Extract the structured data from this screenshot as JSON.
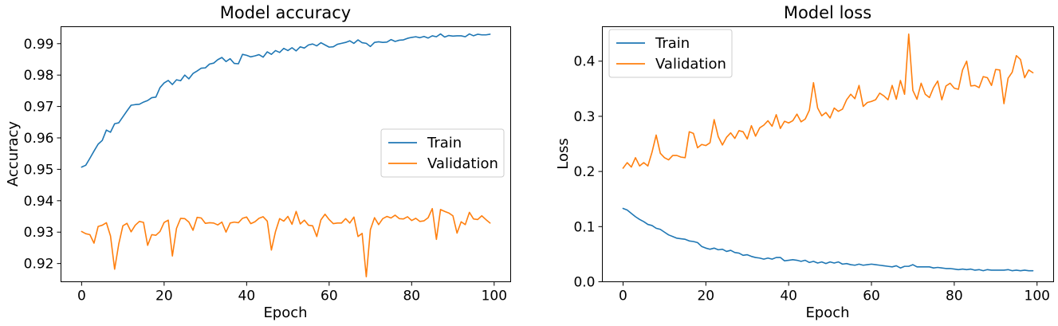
{
  "chart_data": [
    {
      "type": "line",
      "title": "Model accuracy",
      "xlabel": "Epoch",
      "ylabel": "Accuracy",
      "xlim": [
        -5,
        104
      ],
      "ylim": [
        0.9142,
        0.9954
      ],
      "xticks": [
        0,
        20,
        40,
        60,
        80,
        100
      ],
      "yticks": [
        0.92,
        0.93,
        0.94,
        0.95,
        0.96,
        0.97,
        0.98,
        0.99
      ],
      "ytick_labels": [
        "0.92",
        "0.93",
        "0.94",
        "0.95",
        "0.96",
        "0.97",
        "0.98",
        "0.99"
      ],
      "grid": false,
      "legend_position": "center-right",
      "series": [
        {
          "name": "Train",
          "color": "#1f77b4",
          "x": [
            0,
            1,
            2,
            3,
            4,
            5,
            6,
            7,
            8,
            9,
            10,
            11,
            12,
            13,
            14,
            15,
            16,
            17,
            18,
            19,
            20,
            21,
            22,
            23,
            24,
            25,
            26,
            27,
            28,
            29,
            30,
            31,
            32,
            33,
            34,
            35,
            36,
            37,
            38,
            39,
            40,
            41,
            42,
            43,
            44,
            45,
            46,
            47,
            48,
            49,
            50,
            51,
            52,
            53,
            54,
            55,
            56,
            57,
            58,
            59,
            60,
            61,
            62,
            63,
            64,
            65,
            66,
            67,
            68,
            69,
            70,
            71,
            72,
            73,
            74,
            75,
            76,
            77,
            78,
            79,
            80,
            81,
            82,
            83,
            84,
            85,
            86,
            87,
            88,
            89,
            90,
            91,
            92,
            93,
            94,
            95,
            96,
            97,
            98,
            99
          ],
          "y": [
            0.9507,
            0.9513,
            0.9535,
            0.9558,
            0.958,
            0.9592,
            0.9625,
            0.9618,
            0.9645,
            0.9648,
            0.9667,
            0.9686,
            0.9704,
            0.9706,
            0.9707,
            0.9714,
            0.9719,
            0.9728,
            0.973,
            0.976,
            0.9775,
            0.9783,
            0.977,
            0.9785,
            0.9782,
            0.98,
            0.9788,
            0.9805,
            0.9813,
            0.9822,
            0.9823,
            0.9835,
            0.9838,
            0.9849,
            0.9856,
            0.9843,
            0.9852,
            0.9837,
            0.9836,
            0.9866,
            0.9863,
            0.9858,
            0.9861,
            0.9865,
            0.9857,
            0.9874,
            0.9866,
            0.9878,
            0.9872,
            0.9885,
            0.9878,
            0.9887,
            0.9877,
            0.989,
            0.9886,
            0.9896,
            0.9899,
            0.9893,
            0.9903,
            0.9896,
            0.9889,
            0.989,
            0.9898,
            0.9901,
            0.9904,
            0.9909,
            0.9901,
            0.9912,
            0.9903,
            0.9901,
            0.9891,
            0.9904,
            0.9906,
            0.9904,
            0.9905,
            0.9913,
            0.9907,
            0.9911,
            0.9912,
            0.9917,
            0.992,
            0.9922,
            0.9919,
            0.9923,
            0.9918,
            0.9925,
            0.9922,
            0.9931,
            0.9921,
            0.9926,
            0.9924,
            0.9925,
            0.9925,
            0.9922,
            0.9931,
            0.9925,
            0.993,
            0.9928,
            0.9928,
            0.993
          ]
        },
        {
          "name": "Validation",
          "color": "#ff7f0e",
          "x": [
            0,
            1,
            2,
            3,
            4,
            5,
            6,
            7,
            8,
            9,
            10,
            11,
            12,
            13,
            14,
            15,
            16,
            17,
            18,
            19,
            20,
            21,
            22,
            23,
            24,
            25,
            26,
            27,
            28,
            29,
            30,
            31,
            32,
            33,
            34,
            35,
            36,
            37,
            38,
            39,
            40,
            41,
            42,
            43,
            44,
            45,
            46,
            47,
            48,
            49,
            50,
            51,
            52,
            53,
            54,
            55,
            56,
            57,
            58,
            59,
            60,
            61,
            62,
            63,
            64,
            65,
            66,
            67,
            68,
            69,
            70,
            71,
            72,
            73,
            74,
            75,
            76,
            77,
            78,
            79,
            80,
            81,
            82,
            83,
            84,
            85,
            86,
            87,
            88,
            89,
            90,
            91,
            92,
            93,
            94,
            95,
            96,
            97,
            98,
            99
          ],
          "y": [
            0.9302,
            0.9295,
            0.9292,
            0.9265,
            0.9318,
            0.9322,
            0.933,
            0.9288,
            0.9182,
            0.9262,
            0.932,
            0.9328,
            0.9301,
            0.9322,
            0.9334,
            0.9331,
            0.9258,
            0.9292,
            0.929,
            0.9302,
            0.9331,
            0.9338,
            0.9224,
            0.9312,
            0.9344,
            0.9343,
            0.9332,
            0.9306,
            0.9347,
            0.9345,
            0.9328,
            0.933,
            0.9329,
            0.9323,
            0.9332,
            0.93,
            0.9329,
            0.9332,
            0.933,
            0.9344,
            0.9348,
            0.9327,
            0.9333,
            0.9344,
            0.9349,
            0.9335,
            0.9243,
            0.9302,
            0.9343,
            0.9335,
            0.935,
            0.9325,
            0.9366,
            0.9326,
            0.9338,
            0.9322,
            0.932,
            0.9286,
            0.9339,
            0.9357,
            0.934,
            0.9327,
            0.9329,
            0.9329,
            0.9343,
            0.9329,
            0.9348,
            0.9286,
            0.9296,
            0.9158,
            0.9308,
            0.9346,
            0.9324,
            0.9343,
            0.935,
            0.9345,
            0.9354,
            0.9343,
            0.9342,
            0.9349,
            0.9337,
            0.9344,
            0.9334,
            0.9336,
            0.9346,
            0.9375,
            0.9277,
            0.9372,
            0.9366,
            0.9361,
            0.9352,
            0.9297,
            0.9333,
            0.9324,
            0.9363,
            0.9342,
            0.934,
            0.9352,
            0.934,
            0.9329
          ]
        }
      ]
    },
    {
      "type": "line",
      "title": "Model loss",
      "xlabel": "Epoch",
      "ylabel": "Loss",
      "xlim": [
        -5,
        104
      ],
      "ylim": [
        0,
        0.4625
      ],
      "xticks": [
        0,
        20,
        40,
        60,
        80,
        100
      ],
      "yticks": [
        0,
        0.1,
        0.2,
        0.3,
        0.4
      ],
      "ytick_labels": [
        "0.0",
        "0.1",
        "0.2",
        "0.3",
        "0.4"
      ],
      "grid": false,
      "legend_position": "top-left",
      "series": [
        {
          "name": "Train",
          "color": "#1f77b4",
          "x": [
            0,
            1,
            2,
            3,
            4,
            5,
            6,
            7,
            8,
            9,
            10,
            11,
            12,
            13,
            14,
            15,
            16,
            17,
            18,
            19,
            20,
            21,
            22,
            23,
            24,
            25,
            26,
            27,
            28,
            29,
            30,
            31,
            32,
            33,
            34,
            35,
            36,
            37,
            38,
            39,
            40,
            41,
            42,
            43,
            44,
            45,
            46,
            47,
            48,
            49,
            50,
            51,
            52,
            53,
            54,
            55,
            56,
            57,
            58,
            59,
            60,
            61,
            62,
            63,
            64,
            65,
            66,
            67,
            68,
            69,
            70,
            71,
            72,
            73,
            74,
            75,
            76,
            77,
            78,
            79,
            80,
            81,
            82,
            83,
            84,
            85,
            86,
            87,
            88,
            89,
            90,
            91,
            92,
            93,
            94,
            95,
            96,
            97,
            98,
            99
          ],
          "y": [
            0.133,
            0.13,
            0.124,
            0.118,
            0.113,
            0.109,
            0.104,
            0.102,
            0.097,
            0.095,
            0.09,
            0.085,
            0.082,
            0.079,
            0.078,
            0.077,
            0.074,
            0.073,
            0.071,
            0.064,
            0.061,
            0.059,
            0.061,
            0.058,
            0.059,
            0.055,
            0.057,
            0.053,
            0.052,
            0.048,
            0.049,
            0.046,
            0.044,
            0.043,
            0.041,
            0.043,
            0.041,
            0.044,
            0.044,
            0.038,
            0.039,
            0.04,
            0.039,
            0.037,
            0.039,
            0.035,
            0.037,
            0.034,
            0.036,
            0.033,
            0.036,
            0.034,
            0.036,
            0.032,
            0.033,
            0.031,
            0.03,
            0.032,
            0.03,
            0.031,
            0.032,
            0.031,
            0.03,
            0.029,
            0.028,
            0.027,
            0.029,
            0.025,
            0.028,
            0.028,
            0.031,
            0.027,
            0.027,
            0.027,
            0.027,
            0.025,
            0.026,
            0.025,
            0.024,
            0.024,
            0.023,
            0.022,
            0.023,
            0.022,
            0.023,
            0.021,
            0.022,
            0.02,
            0.022,
            0.021,
            0.021,
            0.021,
            0.021,
            0.022,
            0.02,
            0.021,
            0.02,
            0.021,
            0.02,
            0.02
          ]
        },
        {
          "name": "Validation",
          "color": "#ff7f0e",
          "x": [
            0,
            1,
            2,
            3,
            4,
            5,
            6,
            7,
            8,
            9,
            10,
            11,
            12,
            13,
            14,
            15,
            16,
            17,
            18,
            19,
            20,
            21,
            22,
            23,
            24,
            25,
            26,
            27,
            28,
            29,
            30,
            31,
            32,
            33,
            34,
            35,
            36,
            37,
            38,
            39,
            40,
            41,
            42,
            43,
            44,
            45,
            46,
            47,
            48,
            49,
            50,
            51,
            52,
            53,
            54,
            55,
            56,
            57,
            58,
            59,
            60,
            61,
            62,
            63,
            64,
            65,
            66,
            67,
            68,
            69,
            70,
            71,
            72,
            73,
            74,
            75,
            76,
            77,
            78,
            79,
            80,
            81,
            82,
            83,
            84,
            85,
            86,
            87,
            88,
            89,
            90,
            91,
            92,
            93,
            94,
            95,
            96,
            97,
            98,
            99
          ],
          "y": [
            0.206,
            0.216,
            0.208,
            0.225,
            0.21,
            0.216,
            0.21,
            0.235,
            0.266,
            0.233,
            0.225,
            0.221,
            0.229,
            0.229,
            0.226,
            0.225,
            0.272,
            0.269,
            0.243,
            0.249,
            0.247,
            0.252,
            0.294,
            0.263,
            0.248,
            0.262,
            0.27,
            0.26,
            0.274,
            0.272,
            0.259,
            0.283,
            0.264,
            0.279,
            0.284,
            0.292,
            0.282,
            0.303,
            0.278,
            0.291,
            0.288,
            0.292,
            0.304,
            0.29,
            0.295,
            0.311,
            0.361,
            0.315,
            0.301,
            0.307,
            0.297,
            0.315,
            0.309,
            0.313,
            0.33,
            0.34,
            0.332,
            0.356,
            0.318,
            0.325,
            0.327,
            0.33,
            0.342,
            0.337,
            0.33,
            0.356,
            0.331,
            0.365,
            0.34,
            0.449,
            0.347,
            0.331,
            0.36,
            0.34,
            0.334,
            0.352,
            0.364,
            0.33,
            0.355,
            0.36,
            0.351,
            0.349,
            0.384,
            0.4,
            0.355,
            0.356,
            0.352,
            0.372,
            0.37,
            0.356,
            0.385,
            0.384,
            0.323,
            0.369,
            0.38,
            0.41,
            0.403,
            0.37,
            0.384,
            0.379
          ]
        }
      ]
    }
  ]
}
